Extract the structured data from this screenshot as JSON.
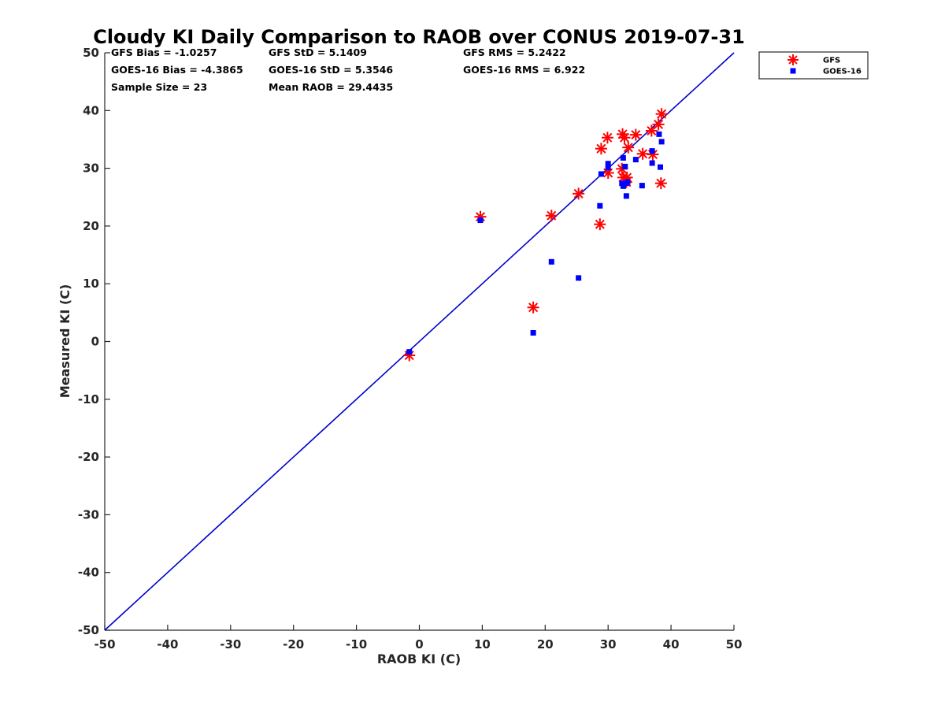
{
  "chart_data": {
    "type": "scatter",
    "title": "Cloudy KI Daily Comparison to RAOB over CONUS 2019-07-31",
    "xlabel": "RAOB KI (C)",
    "ylabel": "Measured KI (C)",
    "xlim": [
      -50,
      50
    ],
    "ylim": [
      -50,
      50
    ],
    "xticks": [
      "-50",
      "-40",
      "-30",
      "-20",
      "-10",
      "0",
      "10",
      "20",
      "30",
      "40",
      "50"
    ],
    "yticks": [
      "-50",
      "-40",
      "-30",
      "-20",
      "-10",
      "0",
      "10",
      "20",
      "30",
      "40",
      "50"
    ],
    "grid": false,
    "legend_position": "outside-top-right",
    "reference_line": {
      "from": [
        -50,
        -50
      ],
      "to": [
        50,
        50
      ],
      "color": "#0000cc"
    },
    "stats": [
      [
        "GFS Bias = -1.0257",
        "GFS StD = 5.1409",
        "GFS RMS = 5.2422"
      ],
      [
        "GOES-16 Bias = -4.3865",
        "GOES-16 StD = 5.3546",
        "GOES-16 RMS = 6.922"
      ],
      [
        "Sample Size = 23",
        "Mean RAOB = 29.4435",
        ""
      ]
    ],
    "series": [
      {
        "name": "GFS",
        "marker": "asterisk",
        "color": "#ff0000",
        "points": [
          [
            -1.6,
            -2.4
          ],
          [
            9.7,
            21.6
          ],
          [
            18.1,
            5.9
          ],
          [
            21.0,
            21.8
          ],
          [
            25.3,
            25.6
          ],
          [
            28.7,
            20.3
          ],
          [
            28.9,
            33.4
          ],
          [
            29.9,
            35.3
          ],
          [
            30.0,
            29.2
          ],
          [
            32.2,
            29.9
          ],
          [
            32.4,
            28.4
          ],
          [
            32.3,
            35.9
          ],
          [
            32.6,
            35.3
          ],
          [
            33.0,
            28.4
          ],
          [
            33.2,
            33.6
          ],
          [
            34.4,
            35.8
          ],
          [
            35.5,
            32.5
          ],
          [
            36.9,
            36.5
          ],
          [
            37.1,
            32.4
          ],
          [
            38.0,
            37.6
          ],
          [
            38.5,
            39.4
          ],
          [
            38.4,
            27.4
          ],
          [
            32.9,
            27.6
          ]
        ]
      },
      {
        "name": "GOES-16",
        "marker": "square",
        "color": "#0000ff",
        "points": [
          [
            -1.6,
            -1.8
          ],
          [
            9.7,
            21.0
          ],
          [
            18.1,
            1.5
          ],
          [
            21.0,
            13.8
          ],
          [
            25.3,
            11.0
          ],
          [
            28.7,
            23.5
          ],
          [
            28.9,
            29.0
          ],
          [
            30.0,
            30.8
          ],
          [
            30.0,
            30.1
          ],
          [
            32.2,
            27.4
          ],
          [
            32.4,
            31.8
          ],
          [
            32.4,
            26.9
          ],
          [
            32.7,
            30.3
          ],
          [
            32.9,
            25.2
          ],
          [
            33.1,
            27.6
          ],
          [
            34.4,
            31.5
          ],
          [
            35.4,
            27.0
          ],
          [
            37.0,
            33.0
          ],
          [
            37.0,
            30.9
          ],
          [
            38.1,
            35.9
          ],
          [
            38.5,
            34.6
          ],
          [
            38.3,
            30.2
          ],
          [
            32.9,
            27.4
          ]
        ]
      }
    ]
  }
}
